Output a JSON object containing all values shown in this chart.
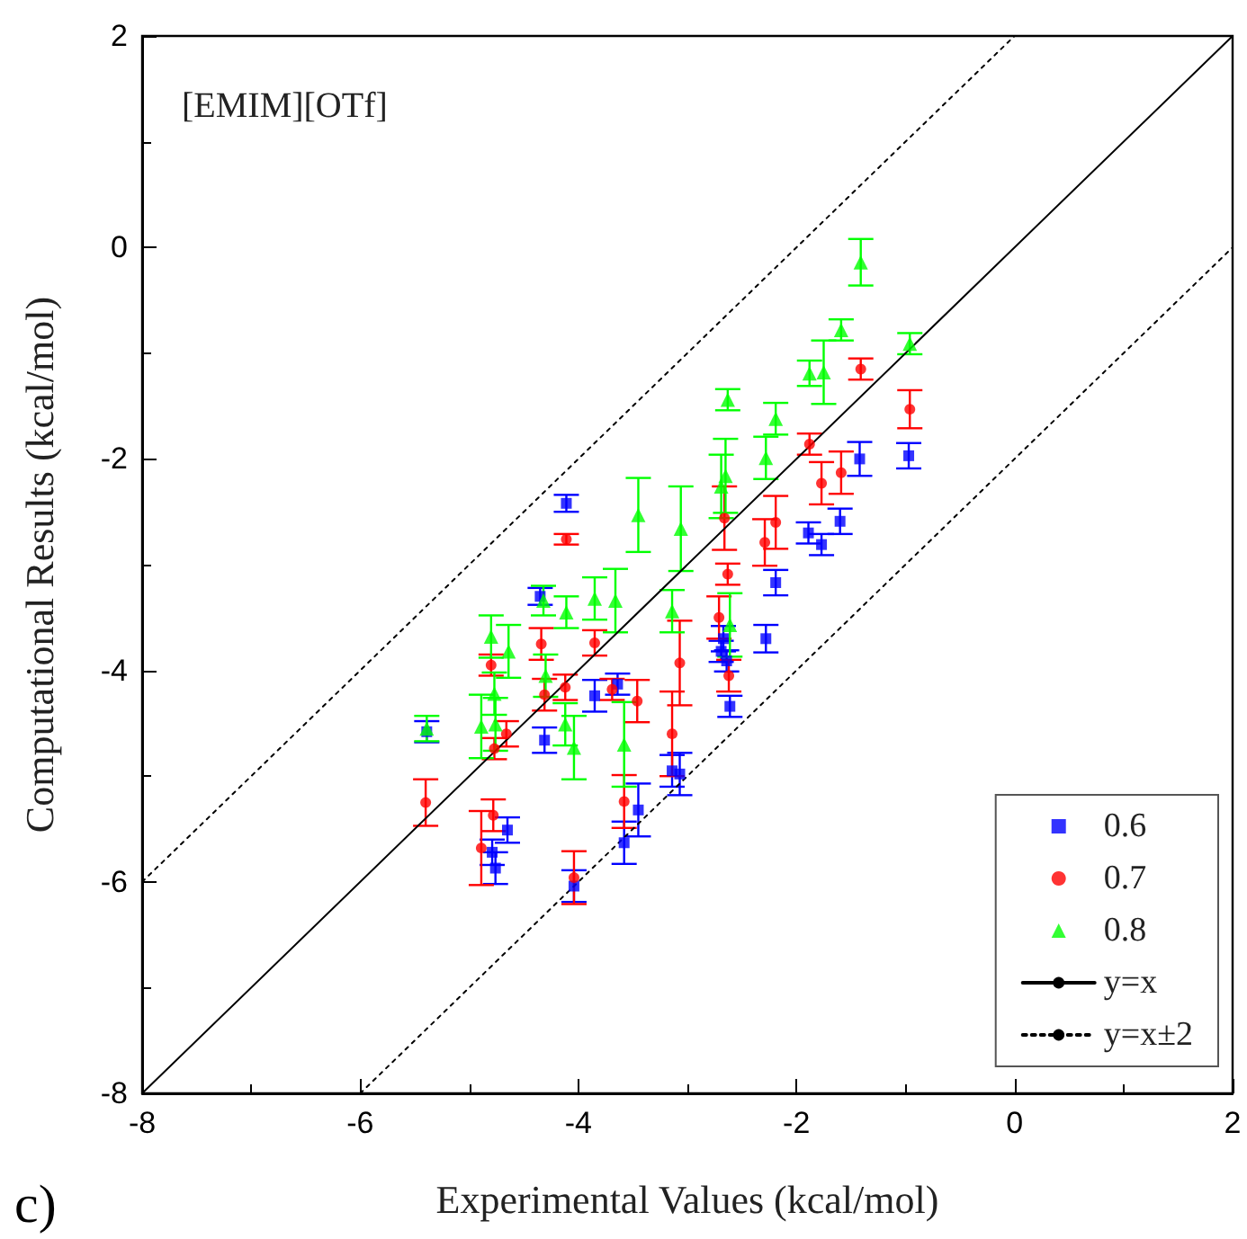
{
  "chart_data": {
    "type": "scatter",
    "title": "[EMIM][OTf]",
    "xlabel": "Experimental Values (kcal/mol)",
    "ylabel": "Computational Results (kcal/mol)",
    "annotations": [
      "c)"
    ],
    "xlim": [
      -8,
      2
    ],
    "xticks": [
      -8,
      -6,
      -4,
      -2,
      0,
      2
    ],
    "ylim": [
      -8,
      2
    ],
    "yticks": [
      -8,
      -6,
      -4,
      -2,
      0,
      2
    ],
    "grid": false,
    "legend": "bottom right",
    "series": [
      {
        "name": "0.6",
        "color": "#0000ff",
        "marker": "square",
        "x": [
          -5.39,
          -4.35,
          -4.11,
          -4.31,
          -3.85,
          -3.64,
          -2.67,
          -2.69,
          -2.64,
          -2.61,
          -2.28,
          -2.19,
          -1.89,
          -1.77,
          -1.6,
          -1.42,
          -0.97,
          -4.65,
          -4.79,
          -4.76,
          -4.04,
          -3.45,
          -3.58,
          -3.14,
          -3.07
        ],
        "values": [
          -4.58,
          -3.3,
          -2.42,
          -4.66,
          -4.24,
          -4.13,
          -3.7,
          -3.82,
          -3.91,
          -4.34,
          -3.7,
          -3.17,
          -2.7,
          -2.81,
          -2.59,
          -2.0,
          -1.97,
          -5.51,
          -5.72,
          -5.87,
          -6.04,
          -5.32,
          -5.63,
          -4.95,
          -4.98
        ],
        "errors": [
          0.1,
          0.08,
          0.08,
          0.12,
          0.15,
          0.1,
          0.12,
          0.1,
          0.1,
          0.1,
          0.13,
          0.12,
          0.1,
          0.1,
          0.12,
          0.16,
          0.12,
          0.12,
          0.12,
          0.15,
          0.15,
          0.25,
          0.2,
          0.15,
          0.2
        ]
      },
      {
        "name": "0.7",
        "color": "#ff0000",
        "marker": "circle",
        "x": [
          -5.4,
          -4.8,
          -4.78,
          -4.89,
          -4.77,
          -4.66,
          -4.34,
          -4.31,
          -4.12,
          -4.11,
          -4.04,
          -3.85,
          -3.69,
          -3.58,
          -3.46,
          -3.14,
          -3.07,
          -2.71,
          -2.66,
          -2.63,
          -2.62,
          -2.29,
          -2.19,
          -1.88,
          -1.77,
          -1.59,
          -1.41,
          -0.96
        ],
        "values": [
          -5.25,
          -3.95,
          -5.37,
          -5.68,
          -4.74,
          -4.6,
          -3.75,
          -4.23,
          -4.16,
          -2.76,
          -5.96,
          -3.74,
          -4.18,
          -5.24,
          -4.29,
          -4.6,
          -3.93,
          -3.5,
          -2.56,
          -3.09,
          -4.05,
          -2.79,
          -2.6,
          -1.86,
          -2.23,
          -2.13,
          -1.15,
          -1.53
        ],
        "errors": [
          0.22,
          0.1,
          0.15,
          0.35,
          0.1,
          0.12,
          0.15,
          0.15,
          0.12,
          0.05,
          0.25,
          0.12,
          0.1,
          0.25,
          0.2,
          0.4,
          0.4,
          0.2,
          0.3,
          0.1,
          0.15,
          0.22,
          0.25,
          0.1,
          0.2,
          0.2,
          0.1,
          0.18
        ]
      },
      {
        "name": "0.8",
        "color": "#00ff00",
        "marker": "triangle",
        "x": [
          -5.39,
          -4.89,
          -4.8,
          -4.77,
          -4.76,
          -4.64,
          -4.32,
          -4.3,
          -4.12,
          -4.11,
          -4.04,
          -3.85,
          -3.66,
          -3.58,
          -3.45,
          -3.14,
          -3.06,
          -2.69,
          -2.65,
          -2.63,
          -2.61,
          -2.28,
          -2.19,
          -1.88,
          -1.75,
          -1.59,
          -1.41,
          -0.96
        ],
        "values": [
          -4.55,
          -4.53,
          -3.68,
          -4.22,
          -4.51,
          -3.82,
          -3.34,
          -4.05,
          -4.51,
          -3.45,
          -4.73,
          -3.32,
          -3.34,
          -4.7,
          -2.53,
          -3.44,
          -2.66,
          -2.26,
          -2.16,
          -1.44,
          -3.57,
          -1.99,
          -1.62,
          -1.19,
          -1.18,
          -0.78,
          -0.14,
          -0.91
        ],
        "errors": [
          0.12,
          0.3,
          0.2,
          0.2,
          0.25,
          0.25,
          0.14,
          0.2,
          0.2,
          0.15,
          0.3,
          0.2,
          0.3,
          0.4,
          0.35,
          0.2,
          0.4,
          0.3,
          0.35,
          0.1,
          0.3,
          0.2,
          0.15,
          0.12,
          0.3,
          0.1,
          0.22,
          0.1
        ]
      },
      {
        "name": "y=x",
        "type": "line",
        "color": "#000000",
        "marker": "none",
        "line_style": "solid",
        "x": [
          -8,
          2
        ],
        "values": [
          -8,
          2
        ]
      },
      {
        "name": "y=x±2",
        "type": "line",
        "color": "#000000",
        "marker": "none",
        "line_style": "dotted",
        "x": [
          -8,
          0
        ],
        "values": [
          -6,
          2
        ]
      },
      {
        "type": "line",
        "color": "#000000",
        "marker": "none",
        "line_style": "dotted",
        "x": [
          -6,
          2
        ],
        "values": [
          -8,
          0
        ]
      }
    ]
  }
}
